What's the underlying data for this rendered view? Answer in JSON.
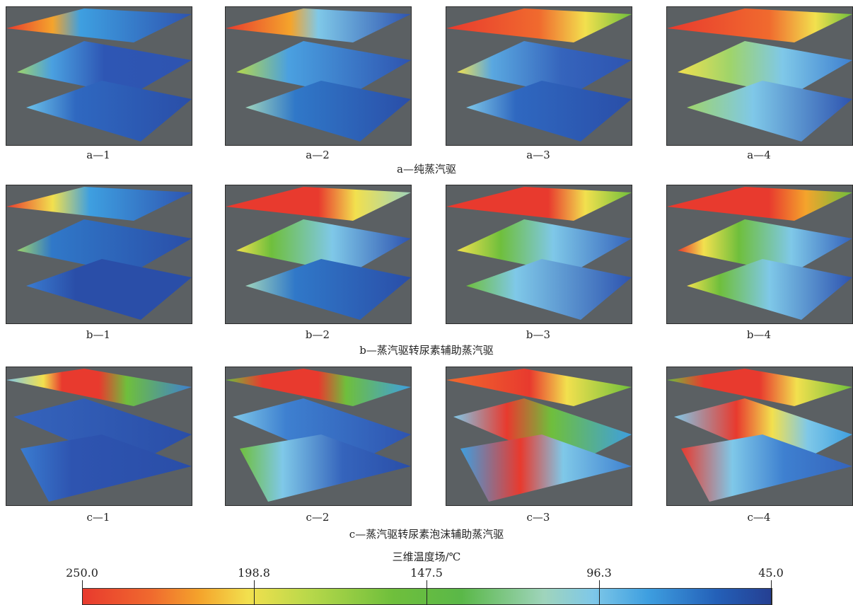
{
  "groups": [
    {
      "title": "a—纯蒸汽驱",
      "panels": [
        "a—1",
        "a—2",
        "a—3",
        "a—4"
      ]
    },
    {
      "title": "b—蒸汽驱转尿素辅助蒸汽驱",
      "panels": [
        "b—1",
        "b—2",
        "b—3",
        "b—4"
      ]
    },
    {
      "title": "c—蒸汽驱转尿素泡沫辅助蒸汽驱",
      "panels": [
        "c—1",
        "c—2",
        "c—3",
        "c—4"
      ]
    }
  ],
  "legend": {
    "title": "三维温度场/℃",
    "ticks": [
      "250.0",
      "198.8",
      "147.5",
      "96.3",
      "45.0"
    ],
    "colors": {
      "hot": "#e83a2e",
      "warm": "#f2e04e",
      "mid": "#6fbf3c",
      "cool": "#7fc8e8",
      "cold": "#253f92"
    }
  }
}
